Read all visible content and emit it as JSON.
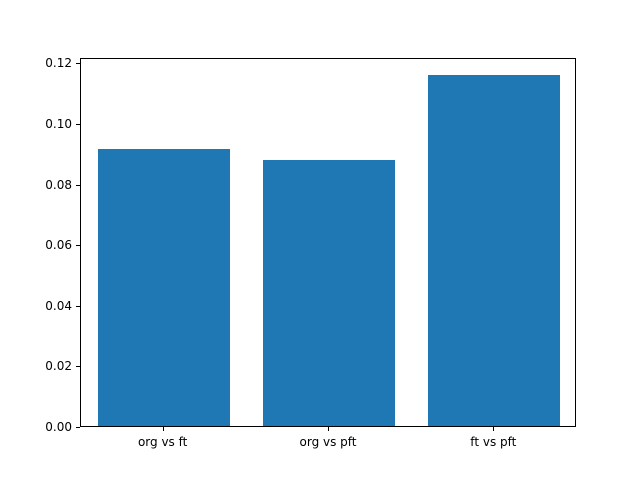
{
  "chart_data": {
    "type": "bar",
    "categories": [
      "org vs ft",
      "org vs pft",
      "ft vs pft"
    ],
    "values": [
      0.0915,
      0.0878,
      0.116
    ],
    "title": "",
    "xlabel": "",
    "ylabel": "",
    "ylim": [
      0,
      0.1218
    ],
    "yticks": [
      "0.00",
      "0.02",
      "0.04",
      "0.06",
      "0.08",
      "0.10",
      "0.12"
    ],
    "ytick_values": [
      0.0,
      0.02,
      0.04,
      0.06,
      0.08,
      0.1,
      0.12
    ],
    "bar_color": "#1f77b4",
    "grid": false,
    "legend": false
  }
}
